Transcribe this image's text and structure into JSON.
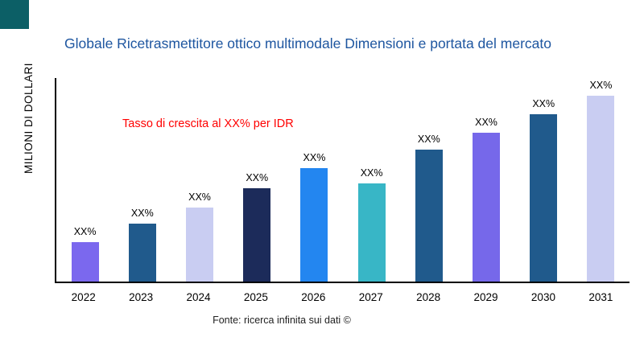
{
  "page": {
    "title": "Globale Ricetrasmettitore ottico multimodale Dimensioni e portata del mercato",
    "y_axis_title": "MILIONI DI DOLLARI",
    "annotation": "Tasso di crescita al XX% per IDR",
    "source": "Fonte: ricerca infinita sui dati ©"
  },
  "colors": {
    "title": "#1E56A0",
    "annotation": "#FF0000",
    "axis": "#000000",
    "corner_square": "#0C5F66"
  },
  "chart_data": {
    "type": "bar",
    "title": "Globale Ricetrasmettitore ottico multimodale Dimensioni e portata del mercato",
    "xlabel": "",
    "ylabel": "MILIONI DI DOLLARI",
    "categories": [
      "2022",
      "2023",
      "2024",
      "2025",
      "2026",
      "2027",
      "2028",
      "2029",
      "2030",
      "2031"
    ],
    "values": [
      21,
      31,
      40,
      50,
      61,
      53,
      71,
      80,
      90,
      100
    ],
    "values_note": "relative bar heights, max bar = 100; no numeric y-axis ticks shown",
    "bar_labels": [
      "XX%",
      "XX%",
      "XX%",
      "XX%",
      "XX%",
      "XX%",
      "XX%",
      "XX%",
      "XX%",
      "XX%"
    ],
    "bar_colors": [
      "#7B68EE",
      "#205A8C",
      "#C9CDF2",
      "#1C2B5A",
      "#2386F0",
      "#38B6C6",
      "#205A8C",
      "#7668EA",
      "#205A8C",
      "#C9CDF2"
    ],
    "ylim": [
      0,
      110
    ],
    "grid": false,
    "legend": false,
    "annotation": "Tasso di crescita al XX% per IDR",
    "source": "Fonte: ricerca infinita sui dati ©"
  }
}
